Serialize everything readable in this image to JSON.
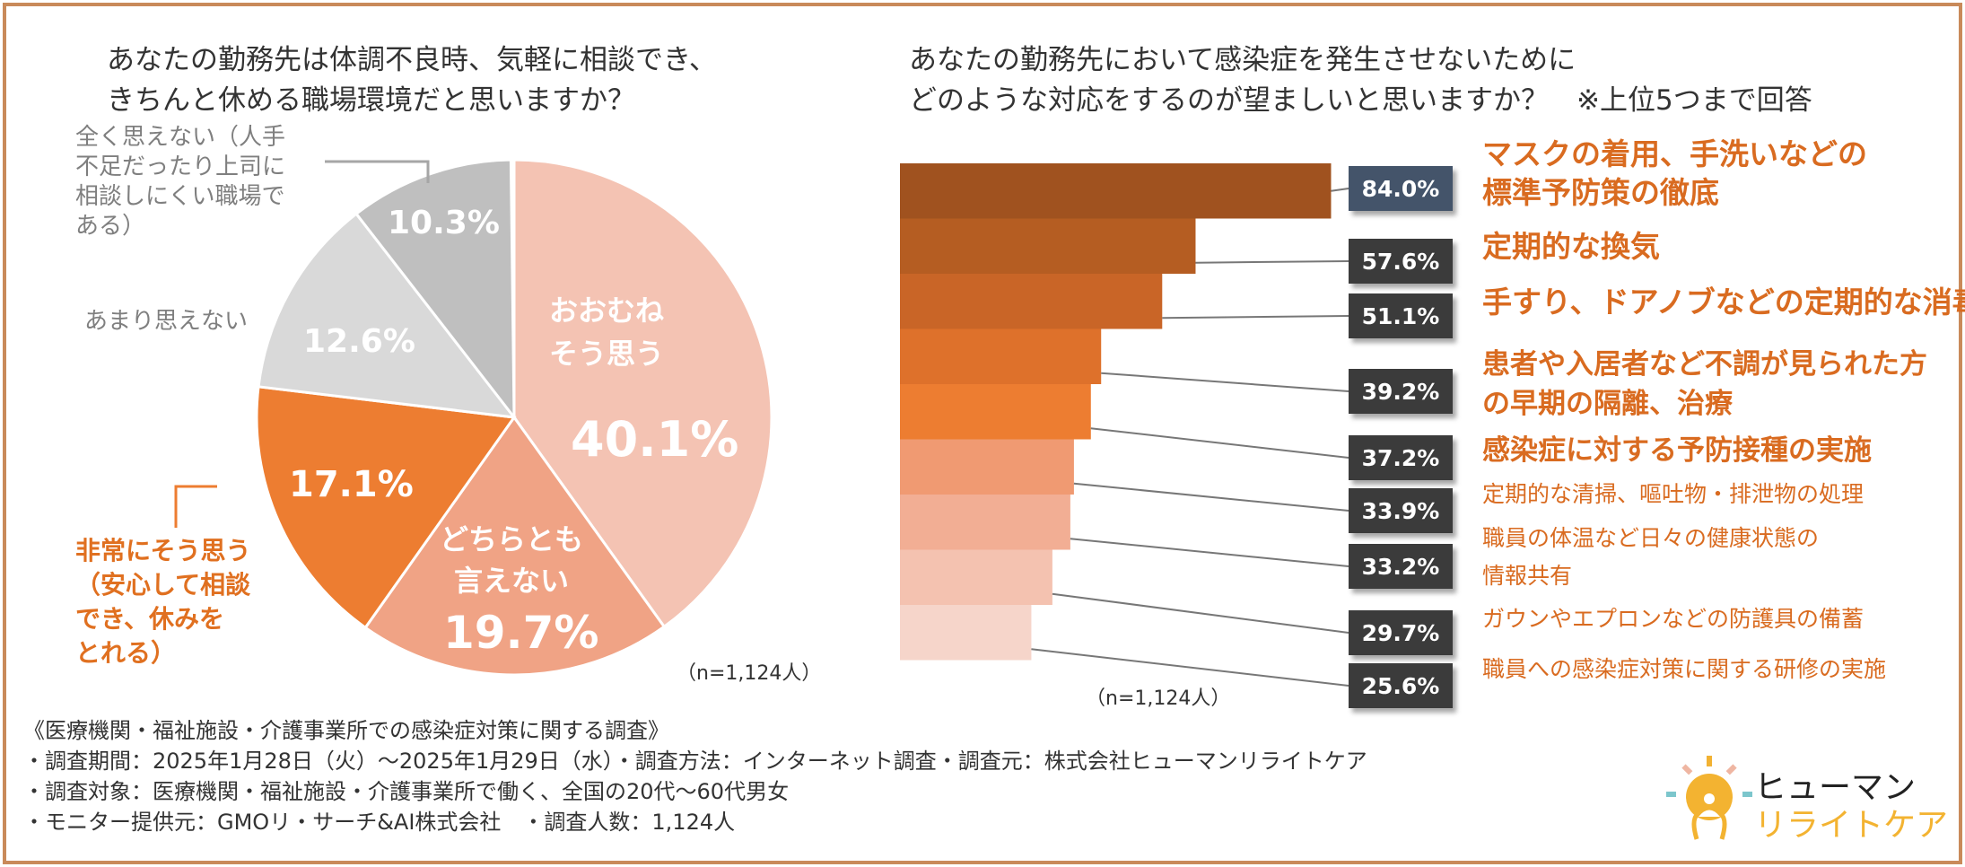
{
  "left": {
    "title": [
      "あなたの勤務先は体調不良時、気軽に相談でき、",
      "きちんと休める職場環境だと思いますか？"
    ],
    "n": "（n=1,124人）"
  },
  "right": {
    "title": [
      "あなたの勤務先において感染症を発生させないために",
      "どのような対応をするのが望ましいと思いますか？　※上位5つまで回答"
    ],
    "n": "（n=1,124人）"
  },
  "chart_data": [
    {
      "type": "pie",
      "start": "12 o'clock",
      "direction": "clockwise",
      "slices": [
        {
          "label": "おおむねそう思う",
          "label_lines": [
            "おおむね",
            "そう思う"
          ],
          "value": 40.1,
          "text": "40.1%",
          "color": "#f4c3b3"
        },
        {
          "label": "どちらとも言えない",
          "label_lines": [
            "どちらとも",
            "言えない"
          ],
          "value": 19.7,
          "text": "19.7%",
          "color": "#f0a385"
        },
        {
          "label": "非常にそう思う（安心して相談でき、休みをとれる）",
          "label_lines": [
            "非常にそう思う",
            "（安心して相談",
            "でき、休みを",
            "とれる）"
          ],
          "value": 17.1,
          "text": "17.1%",
          "color": "#ed7d31"
        },
        {
          "label": "あまり思えない",
          "label_lines": [
            "あまり思えない"
          ],
          "value": 12.6,
          "text": "12.6%",
          "color": "#d9d9d9"
        },
        {
          "label": "全く思えない（人手不足だったり上司に相談しにくい職場である）",
          "label_lines": [
            "全く思えない（人手",
            "不足だったり上司に",
            "相談しにくい職場で",
            "ある）"
          ],
          "value": 10.3,
          "text": "10.3%",
          "color": "#bfbfbf"
        }
      ]
    },
    {
      "type": "bar",
      "orientation": "horizontal",
      "bars": [
        {
          "lines": [
            "マスクの着用、手洗いなどの",
            "標準予防策の徹底"
          ],
          "value": 84.0,
          "text": "84.0%",
          "color": "#a0521f",
          "box": "#44546a",
          "bold": true
        },
        {
          "lines": [
            "定期的な換気"
          ],
          "value": 57.6,
          "text": "57.6%",
          "color": "#b55d22",
          "bold": true
        },
        {
          "lines": [
            "手すり、ドアノブなどの定期的な消毒"
          ],
          "value": 51.1,
          "text": "51.1%",
          "color": "#c96527",
          "bold": true
        },
        {
          "lines": [
            "患者や入居者など不調が見られた方",
            "の早期の隔離、治療"
          ],
          "value": 39.2,
          "text": "39.2%",
          "color": "#de712b",
          "bold": true
        },
        {
          "lines": [
            "感染症に対する予防接種の実施"
          ],
          "value": 37.2,
          "text": "37.2%",
          "color": "#ed7d31",
          "bold": true
        },
        {
          "lines": [
            "定期的な清掃、嘔吐物・排泄物の処理"
          ],
          "value": 33.9,
          "text": "33.9%",
          "color": "#f09a72"
        },
        {
          "lines": [
            "職員の体温など日々の健康状態の",
            "情報共有"
          ],
          "value": 33.2,
          "text": "33.2%",
          "color": "#f2ae94"
        },
        {
          "lines": [
            "ガウンやエプロンなどの防護具の備蓄"
          ],
          "value": 29.7,
          "text": "29.7%",
          "color": "#f4c2b0"
        },
        {
          "lines": [
            "職員への感染症対策に関する研修の実施"
          ],
          "value": 25.6,
          "text": "25.6%",
          "color": "#f6d5ca"
        }
      ]
    }
  ],
  "footer": [
    "《医療機関・福祉施設・介護事業所での感染症対策に関する調査》",
    "・調査期間：2025年1月28日（火）～2025年1月29日（水）・調査方法：インターネット調査・調査元：株式会社ヒューマンリライトケア",
    "・調査対象：医療機関・福祉施設・介護事業所で働く、全国の20代～60代男女",
    "・モニター提供元：GMOリ・サーチ&AI株式会社　・調査人数：1,124人"
  ],
  "logo": {
    "line1": "ヒューマン",
    "line2": "リライトケア"
  }
}
